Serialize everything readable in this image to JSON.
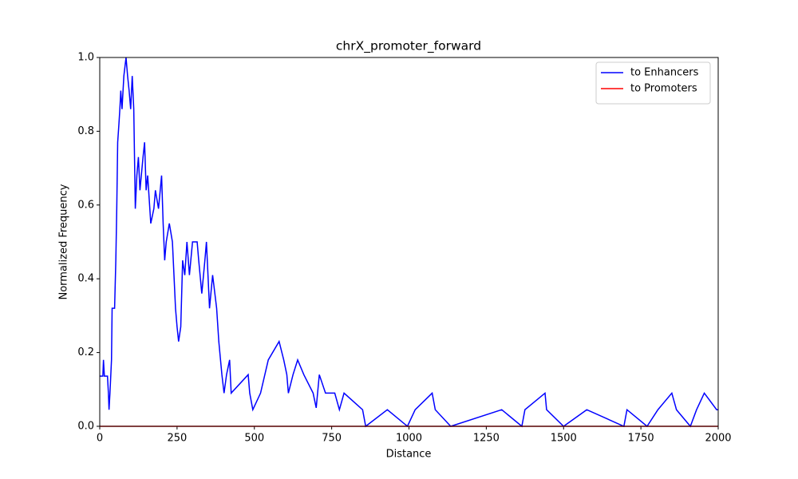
{
  "chart_data": {
    "type": "line",
    "title": "chrX_promoter_forward",
    "x_label": "Distance",
    "y_label": "Normalized Frequency",
    "xlim": [
      0,
      2000
    ],
    "ylim": [
      0,
      1
    ],
    "xticks": [
      0,
      250,
      500,
      750,
      1000,
      1250,
      1500,
      1750,
      2000
    ],
    "yticks": [
      {
        "value": 0,
        "label": "0.0"
      },
      {
        "value": 0.2,
        "label": "0.2"
      },
      {
        "value": 0.4,
        "label": "0.4"
      },
      {
        "value": 0.6,
        "label": "0.6"
      },
      {
        "value": 0.8,
        "label": "0.8"
      },
      {
        "value": 1,
        "label": "1.0"
      }
    ],
    "legend": "upper right",
    "series": [
      {
        "name": "to Enhancers",
        "color": "#0000ff",
        "x": [
          0,
          10,
          12,
          15,
          25,
          28,
          30,
          33,
          38,
          40,
          48,
          52,
          55,
          58,
          62,
          65,
          68,
          72,
          78,
          85,
          90,
          95,
          100,
          105,
          110,
          115,
          120,
          125,
          130,
          140,
          145,
          150,
          155,
          165,
          175,
          180,
          190,
          200,
          205,
          210,
          215,
          225,
          235,
          240,
          245,
          250,
          255,
          262,
          268,
          275,
          282,
          290,
          300,
          315,
          320,
          330,
          340,
          345,
          350,
          355,
          365,
          378,
          385,
          395,
          402,
          410,
          420,
          425,
          480,
          485,
          495,
          520,
          545,
          580,
          595,
          605,
          610,
          625,
          640,
          660,
          690,
          700,
          710,
          730,
          760,
          775,
          790,
          850,
          860,
          930,
          995,
          1020,
          1075,
          1085,
          1135,
          1300,
          1365,
          1375,
          1440,
          1445,
          1500,
          1575,
          1695,
          1705,
          1770,
          1805,
          1850,
          1865,
          1910,
          1930,
          1955,
          1995,
          2000
        ],
        "values": [
          0.136,
          0.136,
          0.18,
          0.136,
          0.136,
          0.09,
          0.045,
          0.09,
          0.18,
          0.32,
          0.32,
          0.45,
          0.59,
          0.77,
          0.82,
          0.86,
          0.91,
          0.86,
          0.95,
          1.0,
          0.95,
          0.91,
          0.86,
          0.95,
          0.86,
          0.59,
          0.68,
          0.73,
          0.64,
          0.73,
          0.77,
          0.64,
          0.68,
          0.55,
          0.59,
          0.64,
          0.59,
          0.68,
          0.55,
          0.45,
          0.5,
          0.55,
          0.5,
          0.41,
          0.32,
          0.27,
          0.23,
          0.27,
          0.45,
          0.41,
          0.5,
          0.41,
          0.5,
          0.5,
          0.45,
          0.36,
          0.45,
          0.5,
          0.41,
          0.32,
          0.41,
          0.32,
          0.23,
          0.14,
          0.09,
          0.14,
          0.18,
          0.09,
          0.14,
          0.09,
          0.045,
          0.09,
          0.18,
          0.23,
          0.18,
          0.14,
          0.09,
          0.14,
          0.18,
          0.14,
          0.09,
          0.05,
          0.14,
          0.09,
          0.09,
          0.045,
          0.09,
          0.045,
          0,
          0.045,
          0,
          0.045,
          0.09,
          0.045,
          0,
          0.045,
          0,
          0.045,
          0.09,
          0.045,
          0,
          0.045,
          0,
          0.045,
          0,
          0.045,
          0.09,
          0.045,
          0,
          0.045,
          0.09,
          0.045,
          0.045
        ]
      },
      {
        "name": "to Promoters",
        "color": "#ff0000",
        "x": [
          0,
          2000
        ],
        "values": [
          0,
          0
        ]
      }
    ]
  }
}
